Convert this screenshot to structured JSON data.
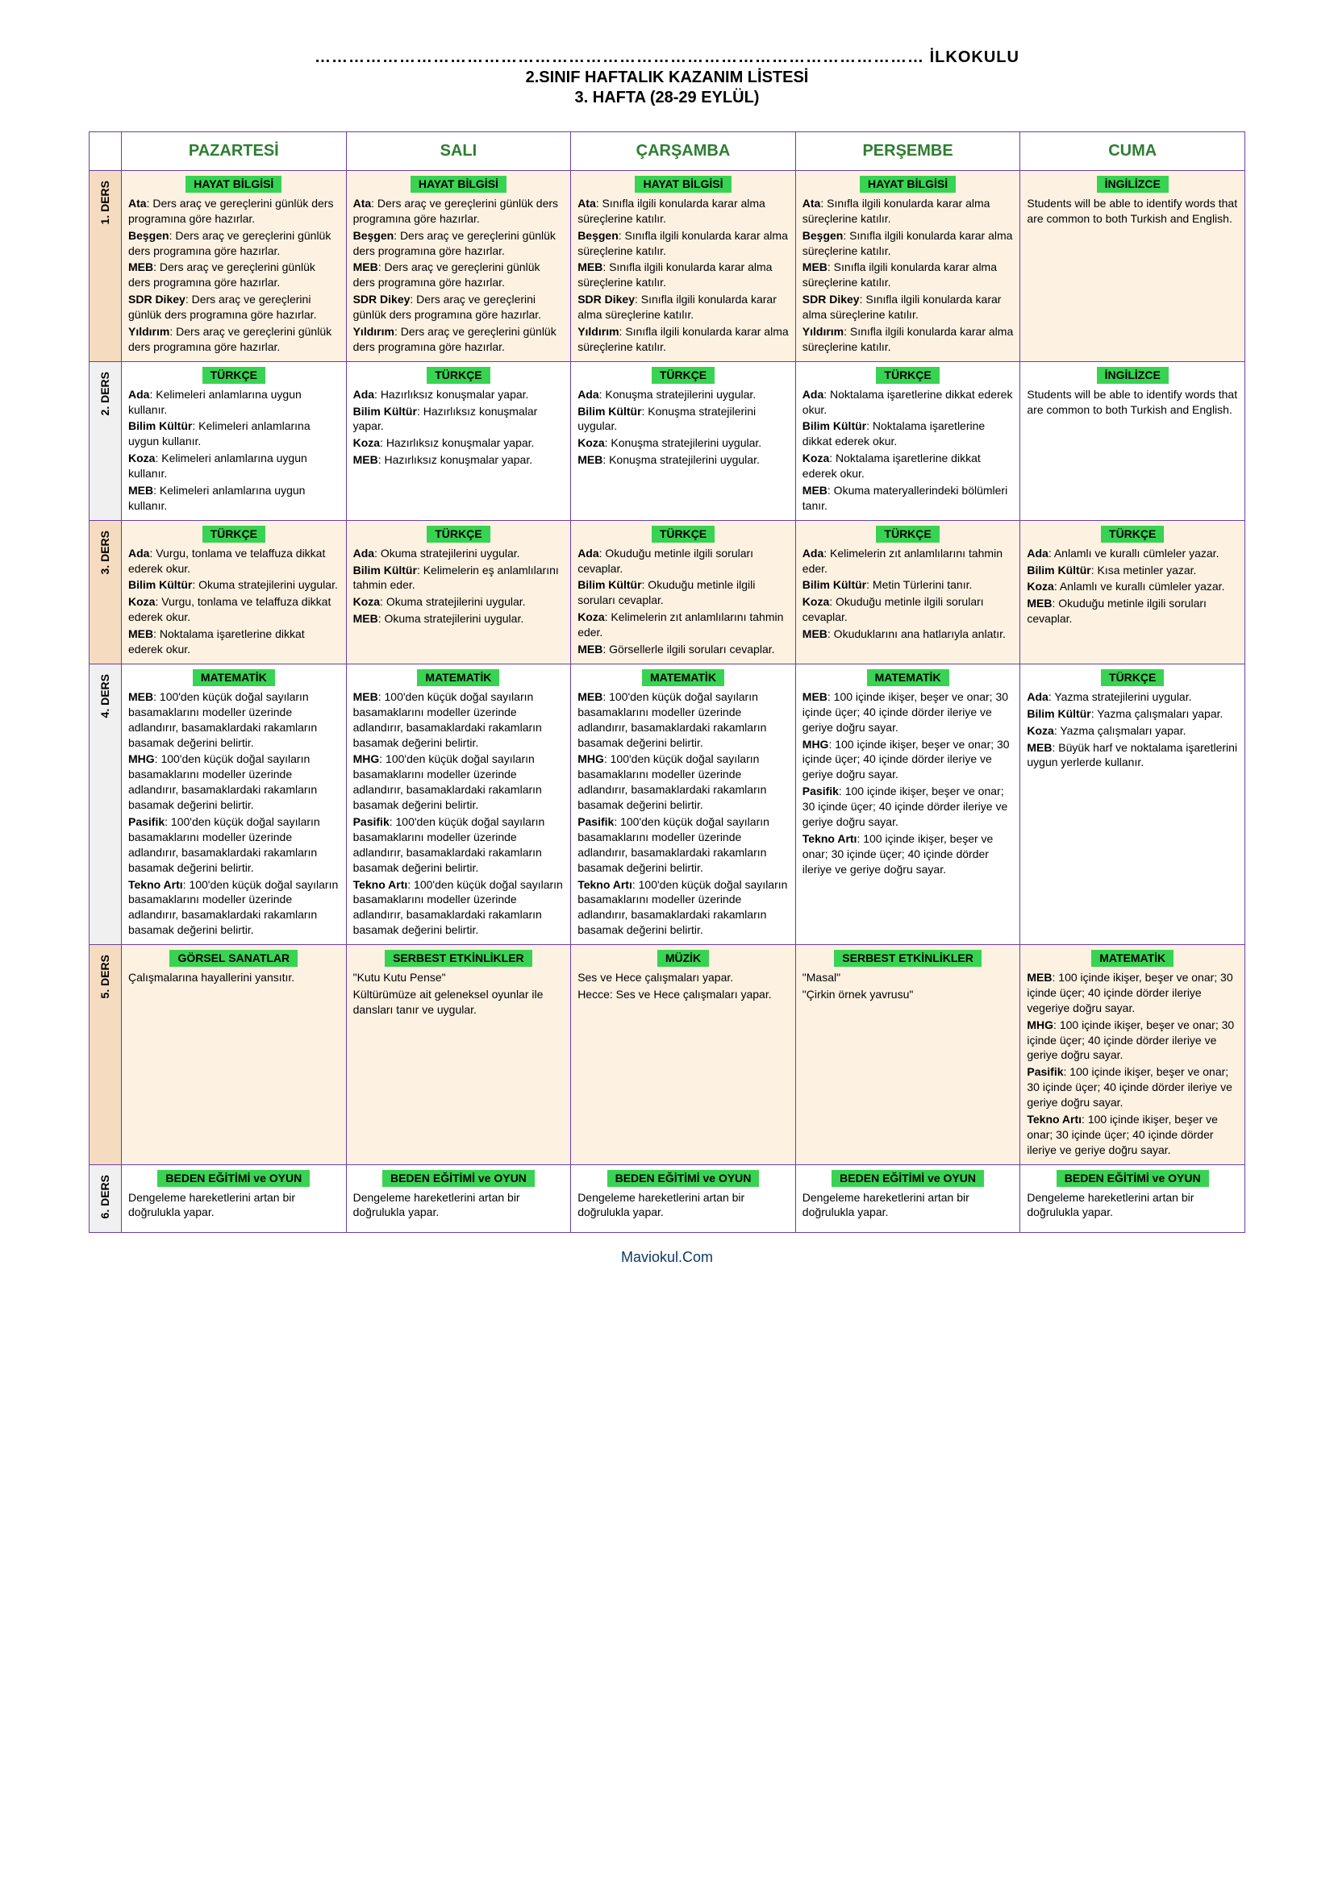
{
  "header": {
    "school": "……………………………………………………………………………………………… İLKOKULU",
    "title": "2.SINIF HAFTALIK KAZANIM LİSTESİ",
    "week": "3. HAFTA (28-29 EYLÜL)"
  },
  "days": [
    "PAZARTESİ",
    "SALI",
    "ÇARŞAMBA",
    "PERŞEMBE",
    "CUMA"
  ],
  "rows": [
    {
      "label": "1. DERS",
      "alt": true,
      "cells": [
        {
          "subject": "HAYAT BİLGİSİ",
          "entries": [
            {
              "b": "Ata",
              "t": ": Ders araç ve gereçlerini günlük ders programına göre hazırlar."
            },
            {
              "b": "Beşgen",
              "t": ": Ders araç ve gereçlerini günlük ders programına göre hazırlar."
            },
            {
              "b": "MEB",
              "t": ": Ders araç ve gereçlerini günlük ders programına göre hazırlar."
            },
            {
              "b": "SDR Dikey",
              "t": ": Ders araç ve gereçlerini günlük ders programına göre hazırlar."
            },
            {
              "b": "Yıldırım",
              "t": ": Ders araç ve gereçlerini günlük ders programına göre hazırlar."
            }
          ]
        },
        {
          "subject": "HAYAT BİLGİSİ",
          "entries": [
            {
              "b": "Ata",
              "t": ": Ders araç ve gereçlerini günlük ders programına göre hazırlar."
            },
            {
              "b": "Beşgen",
              "t": ": Ders araç ve gereçlerini günlük ders programına göre hazırlar."
            },
            {
              "b": "MEB",
              "t": ": Ders araç ve gereçlerini günlük ders programına göre hazırlar."
            },
            {
              "b": "SDR Dikey",
              "t": ": Ders araç ve gereçlerini günlük ders programına göre hazırlar."
            },
            {
              "b": "Yıldırım",
              "t": ": Ders araç ve gereçlerini günlük ders programına göre hazırlar."
            }
          ]
        },
        {
          "subject": "HAYAT BİLGİSİ",
          "entries": [
            {
              "b": "Ata",
              "t": ": Sınıfla ilgili konularda karar alma süreçlerine katılır."
            },
            {
              "b": "Beşgen",
              "t": ": Sınıfla ilgili konularda karar alma süreçlerine katılır."
            },
            {
              "b": "MEB",
              "t": ": Sınıfla ilgili konularda karar alma süreçlerine katılır."
            },
            {
              "b": "SDR Dikey",
              "t": ": Sınıfla ilgili konularda karar alma süreçlerine katılır."
            },
            {
              "b": "Yıldırım",
              "t": ": Sınıfla ilgili konularda karar alma süreçlerine katılır."
            }
          ]
        },
        {
          "subject": "HAYAT BİLGİSİ",
          "entries": [
            {
              "b": "Ata",
              "t": ": Sınıfla ilgili konularda karar alma süreçlerine katılır."
            },
            {
              "b": "Beşgen",
              "t": ": Sınıfla ilgili konularda karar alma süreçlerine katılır."
            },
            {
              "b": "MEB",
              "t": ": Sınıfla ilgili konularda karar alma süreçlerine katılır."
            },
            {
              "b": "SDR Dikey",
              "t": ": Sınıfla ilgili konularda karar alma süreçlerine katılır."
            },
            {
              "b": "Yıldırım",
              "t": ": Sınıfla ilgili konularda karar alma süreçlerine katılır."
            }
          ]
        },
        {
          "subject": "İNGİLİZCE",
          "plain": [
            "Students will be able to identify words that are common to both Turkish and English."
          ]
        }
      ]
    },
    {
      "label": "2. DERS",
      "alt": false,
      "cells": [
        {
          "subject": "TÜRKÇE",
          "entries": [
            {
              "b": "Ada",
              "t": ": Kelimeleri anlamlarına uygun kullanır."
            },
            {
              "b": "Bilim Kültür",
              "t": ": Kelimeleri anlamlarına uygun kullanır."
            },
            {
              "b": "Koza",
              "t": ": Kelimeleri anlamlarına uygun kullanır."
            },
            {
              "b": "MEB",
              "t": ": Kelimeleri anlamlarına uygun kullanır."
            }
          ]
        },
        {
          "subject": "TÜRKÇE",
          "entries": [
            {
              "b": "Ada",
              "t": ": Hazırlıksız konuşmalar yapar."
            },
            {
              "b": "Bilim Kültür",
              "t": ": Hazırlıksız konuşmalar yapar."
            },
            {
              "b": "Koza",
              "t": ": Hazırlıksız konuşmalar yapar."
            },
            {
              "b": "MEB",
              "t": ": Hazırlıksız konuşmalar yapar."
            }
          ]
        },
        {
          "subject": "TÜRKÇE",
          "entries": [
            {
              "b": "Ada",
              "t": ": Konuşma stratejilerini uygular."
            },
            {
              "b": "Bilim Kültür",
              "t": ": Konuşma stratejilerini uygular."
            },
            {
              "b": "Koza",
              "t": ": Konuşma stratejilerini uygular."
            },
            {
              "b": "MEB",
              "t": ": Konuşma stratejilerini uygular."
            }
          ]
        },
        {
          "subject": "TÜRKÇE",
          "entries": [
            {
              "b": "Ada",
              "t": ": Noktalama işaretlerine dikkat ederek okur."
            },
            {
              "b": "Bilim Kültür",
              "t": ": Noktalama işaretlerine dikkat ederek okur."
            },
            {
              "b": "Koza",
              "t": ": Noktalama işaretlerine dikkat ederek okur."
            },
            {
              "b": "MEB",
              "t": ": Okuma materyallerindeki bölümleri tanır."
            }
          ]
        },
        {
          "subject": "İNGİLİZCE",
          "plain": [
            "Students will be able to identify words that are common to both Turkish and English."
          ]
        }
      ]
    },
    {
      "label": "3. DERS",
      "alt": true,
      "cells": [
        {
          "subject": "TÜRKÇE",
          "entries": [
            {
              "b": "Ada",
              "t": ": Vurgu, tonlama ve telaffuza dikkat ederek okur."
            },
            {
              "b": "Bilim Kültür",
              "t": ": Okuma stratejilerini uygular."
            },
            {
              "b": "Koza",
              "t": ": Vurgu, tonlama ve telaffuza dikkat ederek okur."
            },
            {
              "b": "MEB",
              "t": ": Noktalama işaretlerine dikkat ederek okur."
            }
          ]
        },
        {
          "subject": "TÜRKÇE",
          "entries": [
            {
              "b": "Ada",
              "t": ": Okuma stratejilerini uygular."
            },
            {
              "b": "Bilim Kültür",
              "t": ": Kelimelerin eş anlamlılarını tahmin eder."
            },
            {
              "b": "Koza",
              "t": ": Okuma stratejilerini uygular."
            },
            {
              "b": "MEB",
              "t": ": Okuma stratejilerini uygular."
            }
          ]
        },
        {
          "subject": "TÜRKÇE",
          "entries": [
            {
              "b": "Ada",
              "t": ": Okuduğu metinle ilgili soruları cevaplar."
            },
            {
              "b": "Bilim Kültür",
              "t": ": Okuduğu metinle ilgili soruları cevaplar."
            },
            {
              "b": "Koza",
              "t": ": Kelimelerin zıt anlamlılarını tahmin eder."
            },
            {
              "b": "MEB",
              "t": ": Görsellerle ilgili soruları cevaplar."
            }
          ]
        },
        {
          "subject": "TÜRKÇE",
          "entries": [
            {
              "b": "Ada",
              "t": ": Kelimelerin zıt anlamlılarını tahmin eder."
            },
            {
              "b": "Bilim Kültür",
              "t": ": Metin Türlerini tanır."
            },
            {
              "b": "Koza",
              "t": ": Okuduğu metinle ilgili soruları cevaplar."
            },
            {
              "b": "MEB",
              "t": ": Okuduklarını ana hatlarıyla anlatır."
            }
          ]
        },
        {
          "subject": "TÜRKÇE",
          "entries": [
            {
              "b": "Ada",
              "t": ": Anlamlı ve kurallı cümleler yazar."
            },
            {
              "b": "Bilim Kültür",
              "t": ": Kısa metinler yazar."
            },
            {
              "b": "Koza",
              "t": ": Anlamlı ve kurallı cümleler yazar."
            },
            {
              "b": "MEB",
              "t": ": Okuduğu metinle ilgili soruları cevaplar."
            }
          ]
        }
      ]
    },
    {
      "label": "4. DERS",
      "alt": false,
      "cells": [
        {
          "subject": "MATEMATİK",
          "entries": [
            {
              "b": "MEB",
              "t": ": 100'den küçük doğal sayıların basamaklarını modeller üzerinde adlandırır, basamaklardaki rakamların basamak değerini belirtir."
            },
            {
              "b": "MHG",
              "t": ": 100'den küçük doğal sayıların basamaklarını modeller üzerinde adlandırır, basamaklardaki rakamların basamak değerini belirtir."
            },
            {
              "b": "Pasifik",
              "t": ": 100'den küçük doğal sayıların basamaklarını modeller üzerinde adlandırır, basamaklardaki rakamların basamak değerini belirtir."
            },
            {
              "b": "Tekno Artı",
              "t": ": 100'den küçük doğal sayıların basamaklarını modeller üzerinde adlandırır, basamaklardaki rakamların basamak değerini belirtir."
            }
          ]
        },
        {
          "subject": "MATEMATİK",
          "entries": [
            {
              "b": "MEB",
              "t": ": 100'den küçük doğal sayıların basamaklarını modeller üzerinde adlandırır, basamaklardaki rakamların basamak değerini belirtir."
            },
            {
              "b": "MHG",
              "t": ": 100'den küçük doğal sayıların basamaklarını modeller üzerinde adlandırır, basamaklardaki rakamların basamak değerini belirtir."
            },
            {
              "b": "Pasifik",
              "t": ": 100'den küçük doğal sayıların basamaklarını modeller üzerinde adlandırır, basamaklardaki rakamların basamak değerini belirtir."
            },
            {
              "b": "Tekno Artı",
              "t": ": 100'den küçük doğal sayıların basamaklarını modeller üzerinde adlandırır, basamaklardaki rakamların basamak değerini belirtir."
            }
          ]
        },
        {
          "subject": "MATEMATİK",
          "entries": [
            {
              "b": "MEB",
              "t": ": 100'den küçük doğal sayıların basamaklarını modeller üzerinde adlandırır, basamaklardaki rakamların basamak değerini belirtir."
            },
            {
              "b": "MHG",
              "t": ": 100'den küçük doğal sayıların basamaklarını modeller üzerinde adlandırır, basamaklardaki rakamların basamak değerini belirtir."
            },
            {
              "b": "Pasifik",
              "t": ": 100'den küçük doğal sayıların basamaklarını modeller üzerinde adlandırır, basamaklardaki rakamların basamak değerini belirtir."
            },
            {
              "b": "Tekno Artı",
              "t": ": 100'den küçük doğal sayıların basamaklarını modeller üzerinde adlandırır, basamaklardaki rakamların basamak değerini belirtir."
            }
          ]
        },
        {
          "subject": "MATEMATİK",
          "entries": [
            {
              "b": "MEB",
              "t": ": 100 içinde ikişer, beşer ve onar; 30 içinde üçer; 40 içinde dörder ileriye ve geriye doğru sayar."
            },
            {
              "b": "MHG",
              "t": ": 100 içinde ikişer, beşer ve onar; 30 içinde üçer; 40 içinde dörder ileriye ve geriye doğru sayar."
            },
            {
              "b": "Pasifik",
              "t": ": 100 içinde ikişer, beşer ve onar; 30 içinde üçer; 40 içinde dörder ileriye ve geriye doğru sayar."
            },
            {
              "b": "Tekno Artı",
              "t": ": 100 içinde ikişer, beşer ve onar; 30 içinde üçer; 40 içinde dörder ileriye ve geriye doğru sayar."
            }
          ]
        },
        {
          "subject": "TÜRKÇE",
          "entries": [
            {
              "b": "Ada",
              "t": ": Yazma stratejilerini uygular."
            },
            {
              "b": "Bilim Kültür",
              "t": ": Yazma çalışmaları yapar."
            },
            {
              "b": "Koza",
              "t": ": Yazma çalışmaları yapar."
            },
            {
              "b": "MEB",
              "t": ": Büyük harf ve noktalama işaretlerini uygun yerlerde kullanır."
            }
          ]
        }
      ]
    },
    {
      "label": "5. DERS",
      "alt": true,
      "cells": [
        {
          "subject": "GÖRSEL SANATLAR",
          "plain": [
            "Çalışmalarına hayallerini yansıtır."
          ]
        },
        {
          "subject": "SERBEST ETKİNLİKLER",
          "plain": [
            "\"Kutu Kutu Pense\"",
            "Kültürümüze ait geleneksel oyunlar ile dansları tanır ve uygular."
          ]
        },
        {
          "subject": "MÜZİK",
          "plain": [
            "Ses ve Hece çalışmaları yapar.",
            " ",
            "Hecce: Ses ve Hece çalışmaları yapar."
          ]
        },
        {
          "subject": "SERBEST ETKİNLİKLER",
          "plain": [
            "\"Masal\"",
            "\"Çirkin örnek yavrusu\""
          ]
        },
        {
          "subject": "MATEMATİK",
          "entries": [
            {
              "b": "MEB",
              "t": ": 100 içinde ikişer, beşer ve onar; 30 içinde üçer; 40 içinde dörder ileriye vegeriye doğru sayar."
            },
            {
              "b": "MHG",
              "t": ": 100 içinde ikişer, beşer ve onar; 30 içinde üçer; 40 içinde dörder ileriye ve geriye doğru sayar."
            },
            {
              "b": "Pasifik",
              "t": ": 100 içinde ikişer, beşer ve onar; 30 içinde üçer; 40 içinde dörder ileriye ve geriye doğru sayar."
            },
            {
              "b": "Tekno Artı",
              "t": ": 100 içinde ikişer, beşer ve onar; 30 içinde üçer; 40 içinde dörder ileriye ve geriye doğru sayar."
            }
          ]
        }
      ]
    },
    {
      "label": "6. DERS",
      "alt": false,
      "cells": [
        {
          "subject": "BEDEN EĞİTİMİ ve OYUN",
          "plain": [
            "Dengeleme hareketlerini artan bir doğrulukla yapar."
          ]
        },
        {
          "subject": "BEDEN EĞİTİMİ ve OYUN",
          "plain": [
            "Dengeleme hareketlerini artan bir doğrulukla yapar."
          ]
        },
        {
          "subject": "BEDEN EĞİTİMİ ve OYUN",
          "plain": [
            "Dengeleme hareketlerini artan bir doğrulukla yapar."
          ]
        },
        {
          "subject": "BEDEN EĞİTİMİ ve OYUN",
          "plain": [
            "Dengeleme hareketlerini artan bir doğrulukla yapar."
          ]
        },
        {
          "subject": "BEDEN EĞİTİMİ ve OYUN",
          "plain": [
            "Dengeleme hareketlerini artan bir doğrulukla yapar."
          ]
        }
      ]
    }
  ],
  "footer": "Maviokul.Com",
  "colors": {
    "border": "#6b3fa0",
    "day_header": "#2e7d32",
    "subject_bg": "#39d353",
    "alt_row_bg": "#fdf1e2",
    "alt_label_bg": "#f5dcc0"
  }
}
